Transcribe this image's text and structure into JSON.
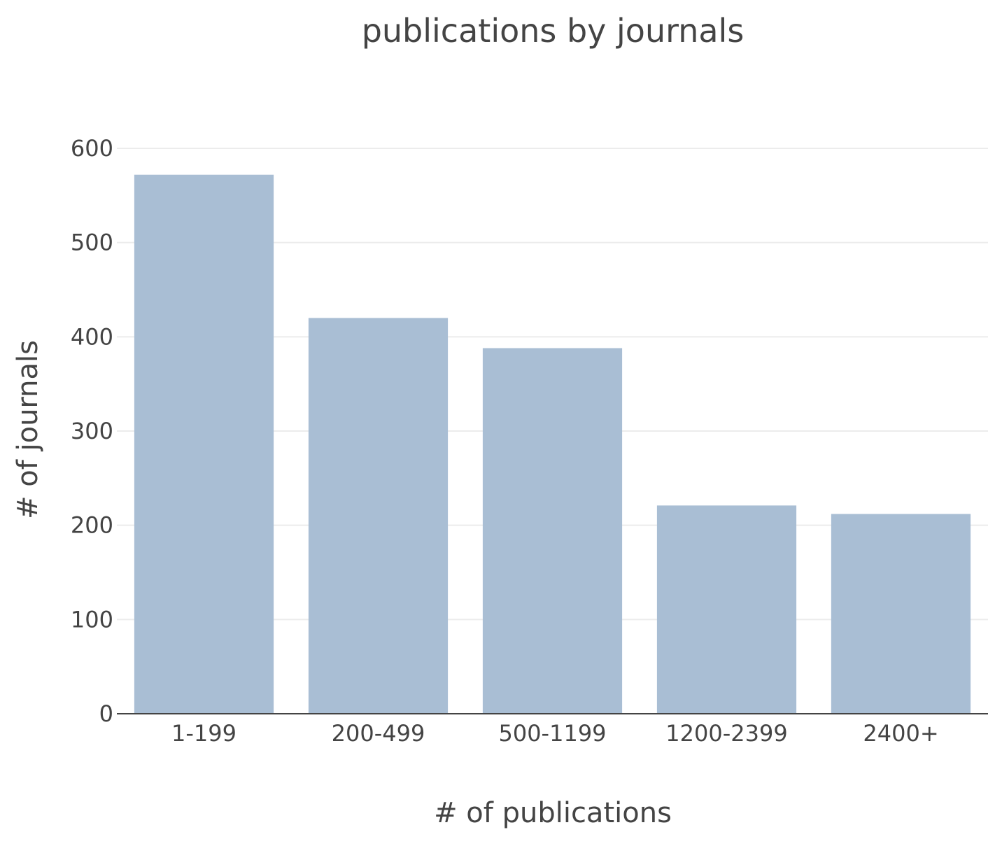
{
  "chart_data": {
    "type": "bar",
    "title": "publications by journals",
    "xlabel": "# of publications",
    "ylabel": "# of journals",
    "categories": [
      "1-199",
      "200-499",
      "500-1199",
      "1200-2399",
      "2400+"
    ],
    "values": [
      572,
      420,
      388,
      221,
      212
    ],
    "ylim": [
      0,
      600
    ],
    "yticks": [
      0,
      100,
      200,
      300,
      400,
      500,
      600
    ],
    "grid": true,
    "colors": {
      "bar": "#a9bed4",
      "grid": "#ececec",
      "axis": "#444444",
      "text": "#444444"
    }
  }
}
